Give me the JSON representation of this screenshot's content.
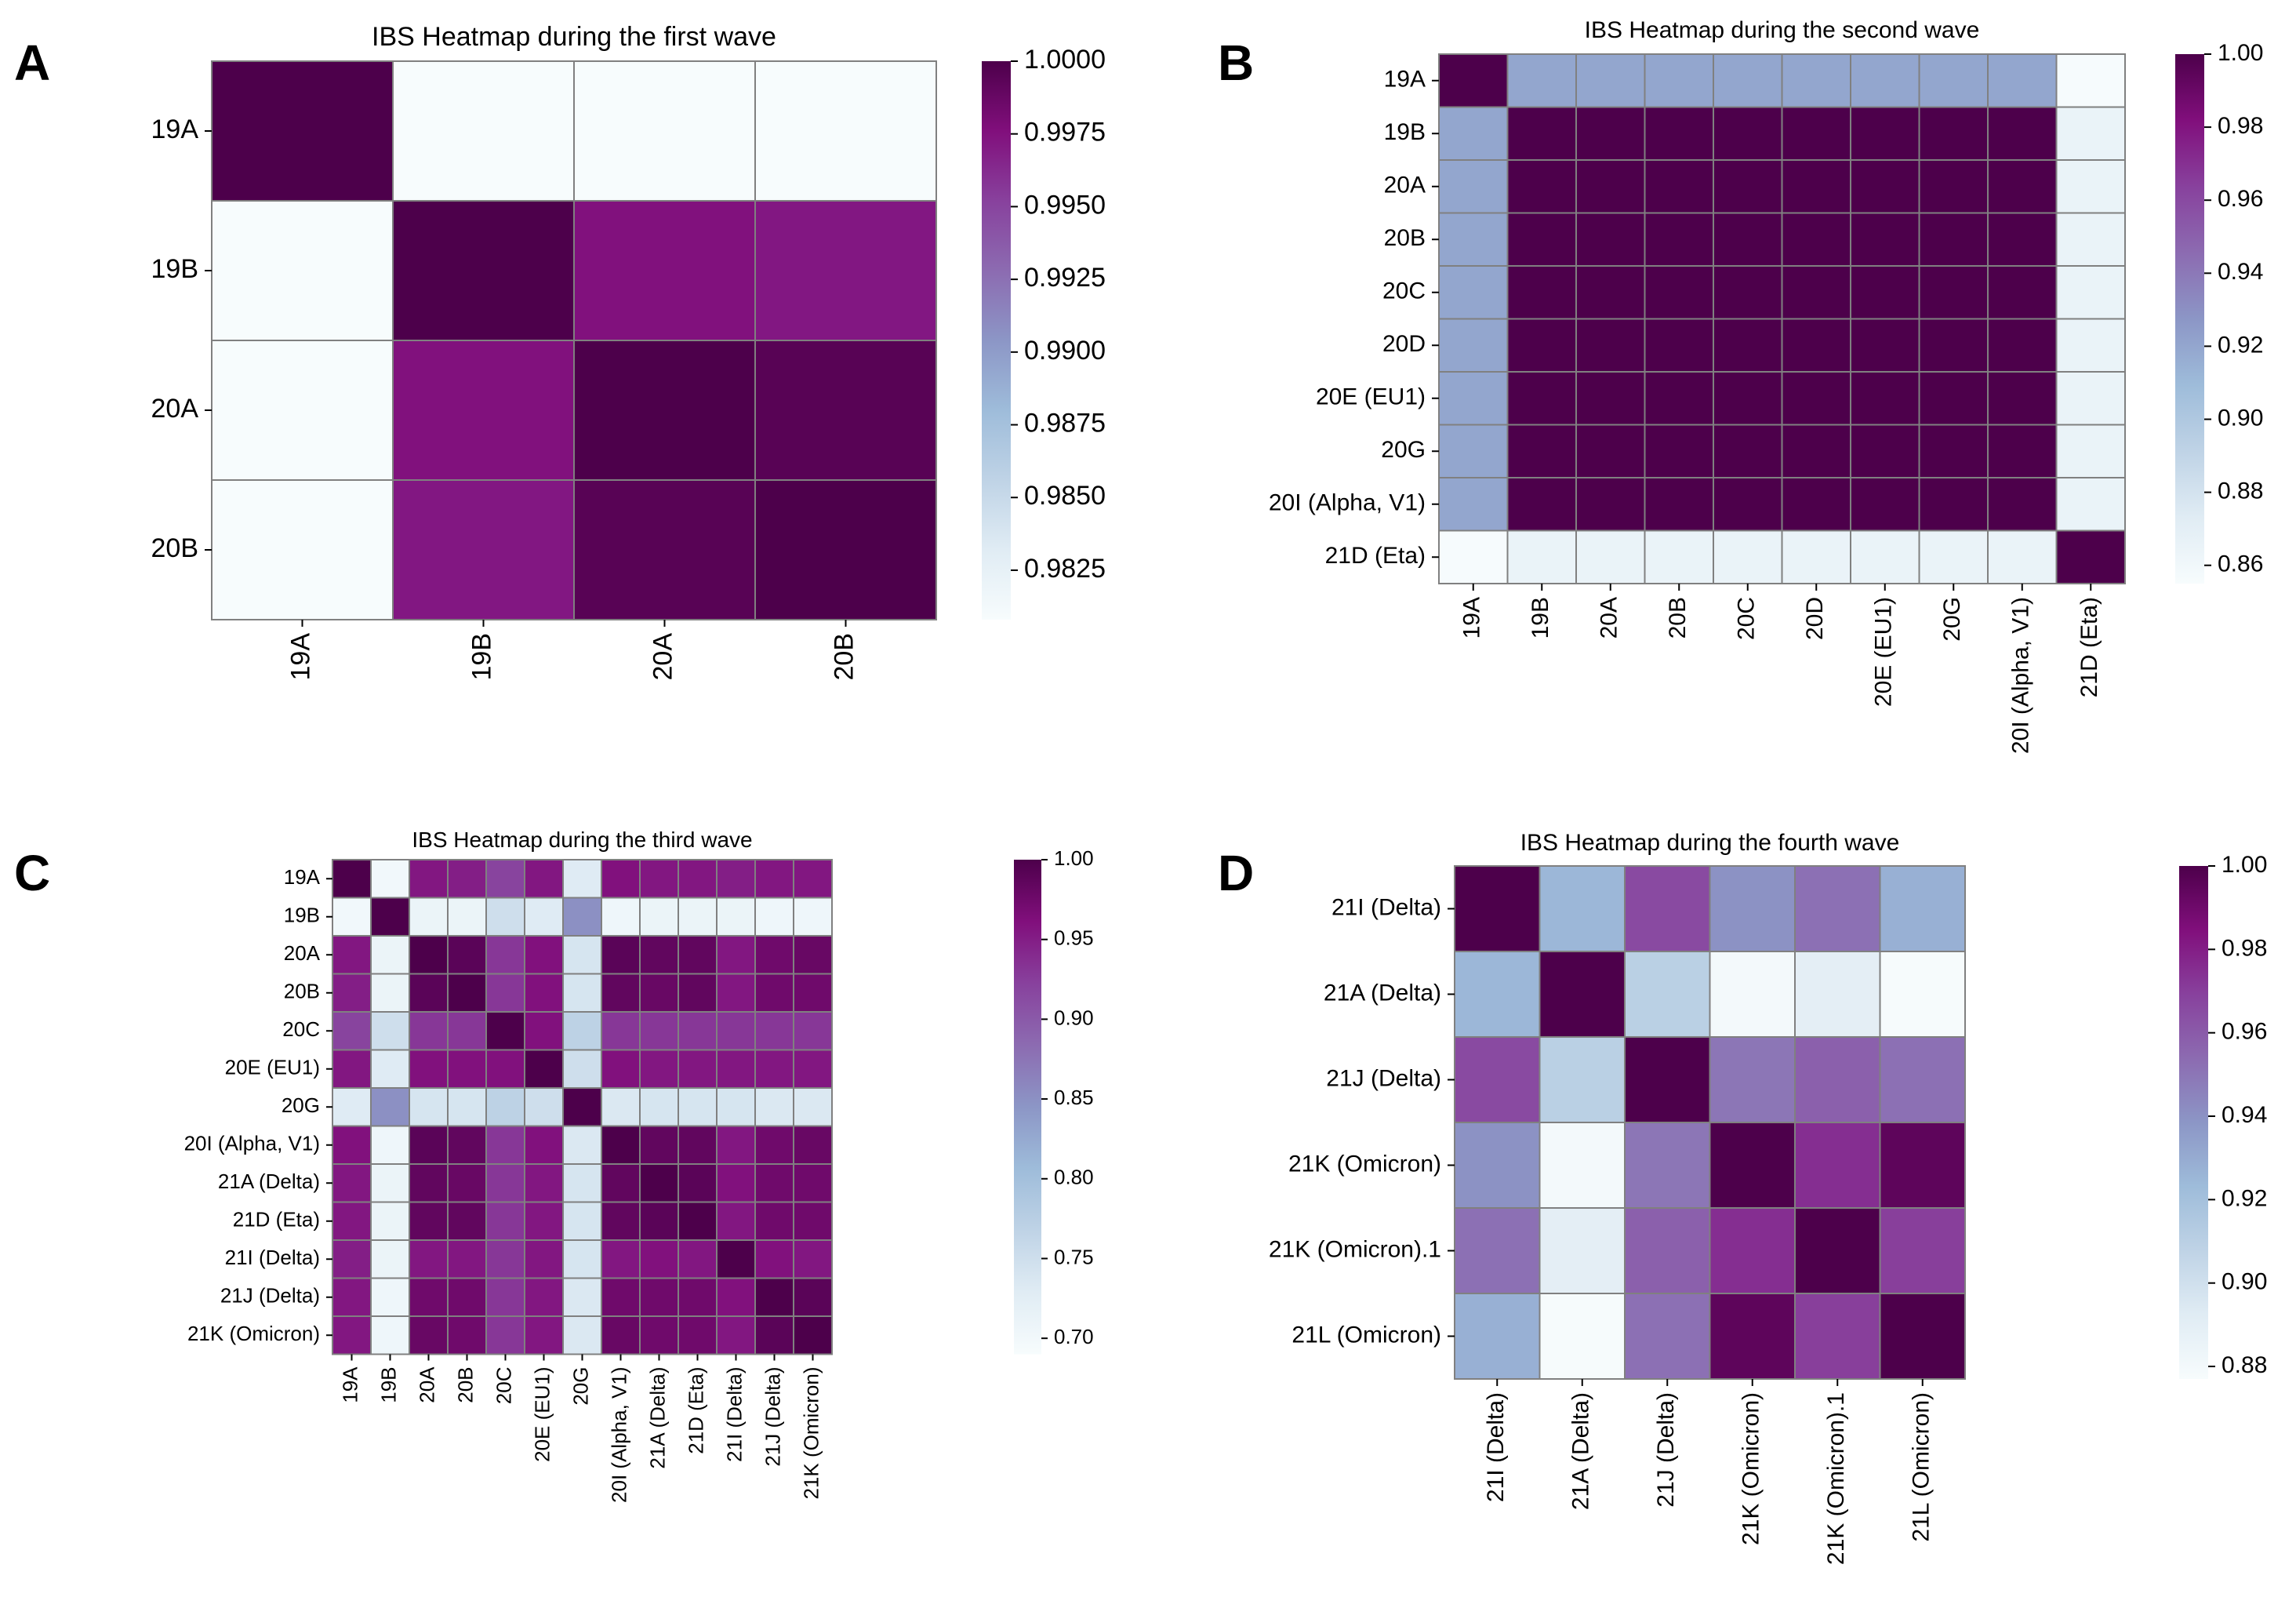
{
  "figure": {
    "panel_labels": [
      "A",
      "B",
      "C",
      "D"
    ]
  },
  "colors": {
    "colormap": [
      "#f7fcfd",
      "#e0ecf4",
      "#bfd3e6",
      "#9ebcda",
      "#8c96c6",
      "#8c6bb1",
      "#88419d",
      "#810f7c",
      "#4d004b"
    ],
    "grid_line": "#808080",
    "text": "#000000",
    "background": "#ffffff"
  },
  "chart_data": [
    {
      "type": "heatmap",
      "panel": "A",
      "title": "IBS Heatmap during the first wave",
      "x_labels": [
        "19A",
        "19B",
        "20A",
        "20B"
      ],
      "y_labels": [
        "19A",
        "19B",
        "20A",
        "20B"
      ],
      "values": [
        [
          1.0,
          0.9808,
          0.9808,
          0.9808
        ],
        [
          0.9808,
          1.0,
          0.9975,
          0.9972
        ],
        [
          0.9806,
          0.9975,
          1.0,
          0.9995
        ],
        [
          0.9806,
          0.9972,
          0.9995,
          1.0
        ]
      ],
      "vmin": 0.9808,
      "vmax": 1.0,
      "colorbar_ticks": [
        0.9825,
        0.985,
        0.9875,
        0.99,
        0.9925,
        0.995,
        0.9975,
        1.0
      ],
      "colorbar_tick_labels": [
        "0.9825",
        "0.9850",
        "0.9875",
        "0.9900",
        "0.9925",
        "0.9950",
        "0.9975",
        "1.0000"
      ]
    },
    {
      "type": "heatmap",
      "panel": "B",
      "title": "IBS Heatmap during the second wave",
      "x_labels": [
        "19A",
        "19B",
        "20A",
        "20B",
        "20C",
        "20D",
        "20E (EU1)",
        "20G",
        "20I (Alpha, V1)",
        "21D (Eta)"
      ],
      "y_labels": [
        "19A",
        "19B",
        "20A",
        "20B",
        "20C",
        "20D",
        "20E (EU1)",
        "20G",
        "20I (Alpha, V1)",
        "21D (Eta)"
      ],
      "values": [
        [
          1.0,
          0.92,
          0.92,
          0.92,
          0.92,
          0.92,
          0.92,
          0.92,
          0.92,
          0.856
        ],
        [
          0.92,
          1.0,
          1.0,
          1.0,
          1.0,
          1.0,
          1.0,
          1.0,
          1.0,
          0.865
        ],
        [
          0.92,
          1.0,
          1.0,
          1.0,
          1.0,
          1.0,
          1.0,
          1.0,
          1.0,
          0.865
        ],
        [
          0.92,
          1.0,
          1.0,
          1.0,
          1.0,
          1.0,
          1.0,
          1.0,
          1.0,
          0.865
        ],
        [
          0.92,
          1.0,
          1.0,
          1.0,
          1.0,
          1.0,
          1.0,
          1.0,
          1.0,
          0.865
        ],
        [
          0.92,
          1.0,
          1.0,
          1.0,
          1.0,
          1.0,
          1.0,
          1.0,
          1.0,
          0.865
        ],
        [
          0.92,
          1.0,
          1.0,
          1.0,
          1.0,
          1.0,
          1.0,
          1.0,
          1.0,
          0.865
        ],
        [
          0.92,
          1.0,
          1.0,
          1.0,
          1.0,
          1.0,
          1.0,
          1.0,
          1.0,
          0.865
        ],
        [
          0.92,
          1.0,
          1.0,
          1.0,
          1.0,
          1.0,
          1.0,
          1.0,
          1.0,
          0.865
        ],
        [
          0.856,
          0.865,
          0.865,
          0.865,
          0.865,
          0.865,
          0.865,
          0.865,
          0.865,
          1.0
        ]
      ],
      "vmin": 0.855,
      "vmax": 1.0,
      "colorbar_ticks": [
        0.86,
        0.88,
        0.9,
        0.92,
        0.94,
        0.96,
        0.98,
        1.0
      ],
      "colorbar_tick_labels": [
        "0.86",
        "0.88",
        "0.90",
        "0.92",
        "0.94",
        "0.96",
        "0.98",
        "1.00"
      ]
    },
    {
      "type": "heatmap",
      "panel": "C",
      "title": "IBS Heatmap during the third wave",
      "x_labels": [
        "19A",
        "19B",
        "20A",
        "20B",
        "20C",
        "20E (EU1)",
        "20G",
        "20I (Alpha, V1)",
        "21A (Delta)",
        "21D (Eta)",
        "21I (Delta)",
        "21J (Delta)",
        "21K (Omicron)"
      ],
      "y_labels": [
        "19A",
        "19B",
        "20A",
        "20B",
        "20C",
        "20E (EU1)",
        "20G",
        "20I (Alpha, V1)",
        "21A (Delta)",
        "21D (Eta)",
        "21I (Delta)",
        "21J (Delta)",
        "21K (Omicron)"
      ],
      "values": [
        [
          1.0,
          0.7,
          0.955,
          0.95,
          0.92,
          0.955,
          0.73,
          0.96,
          0.955,
          0.955,
          0.95,
          0.955,
          0.955
        ],
        [
          0.7,
          1.0,
          0.71,
          0.71,
          0.75,
          0.73,
          0.85,
          0.705,
          0.71,
          0.71,
          0.71,
          0.705,
          0.705
        ],
        [
          0.955,
          0.71,
          1.0,
          0.99,
          0.93,
          0.96,
          0.74,
          0.99,
          0.985,
          0.985,
          0.955,
          0.975,
          0.98
        ],
        [
          0.95,
          0.71,
          0.99,
          1.0,
          0.93,
          0.96,
          0.74,
          0.985,
          0.98,
          0.985,
          0.955,
          0.975,
          0.975
        ],
        [
          0.92,
          0.75,
          0.93,
          0.93,
          1.0,
          0.96,
          0.77,
          0.93,
          0.93,
          0.93,
          0.93,
          0.93,
          0.93
        ],
        [
          0.955,
          0.73,
          0.96,
          0.96,
          0.96,
          1.0,
          0.75,
          0.96,
          0.955,
          0.955,
          0.955,
          0.955,
          0.955
        ],
        [
          0.73,
          0.85,
          0.74,
          0.74,
          0.77,
          0.75,
          1.0,
          0.735,
          0.74,
          0.74,
          0.74,
          0.735,
          0.735
        ],
        [
          0.96,
          0.705,
          0.99,
          0.985,
          0.93,
          0.96,
          0.735,
          1.0,
          0.985,
          0.985,
          0.955,
          0.975,
          0.98
        ],
        [
          0.955,
          0.71,
          0.985,
          0.98,
          0.93,
          0.955,
          0.74,
          0.985,
          1.0,
          0.99,
          0.96,
          0.975,
          0.975
        ],
        [
          0.955,
          0.71,
          0.985,
          0.985,
          0.93,
          0.955,
          0.74,
          0.985,
          0.99,
          1.0,
          0.955,
          0.975,
          0.975
        ],
        [
          0.95,
          0.71,
          0.955,
          0.955,
          0.93,
          0.955,
          0.74,
          0.955,
          0.96,
          0.955,
          1.0,
          0.96,
          0.955
        ],
        [
          0.955,
          0.705,
          0.975,
          0.975,
          0.93,
          0.955,
          0.735,
          0.975,
          0.975,
          0.975,
          0.96,
          1.0,
          0.99
        ],
        [
          0.955,
          0.705,
          0.98,
          0.975,
          0.93,
          0.955,
          0.735,
          0.98,
          0.975,
          0.975,
          0.955,
          0.99,
          1.0
        ]
      ],
      "vmin": 0.69,
      "vmax": 1.0,
      "colorbar_ticks": [
        0.7,
        0.75,
        0.8,
        0.85,
        0.9,
        0.95,
        1.0
      ],
      "colorbar_tick_labels": [
        "0.70",
        "0.75",
        "0.80",
        "0.85",
        "0.90",
        "0.95",
        "1.00"
      ]
    },
    {
      "type": "heatmap",
      "panel": "D",
      "title": "IBS Heatmap during the fourth wave",
      "x_labels": [
        "21I (Delta)",
        "21A (Delta)",
        "21J (Delta)",
        "21K (Omicron)",
        "21K (Omicron).1",
        "21L (Omicron)"
      ],
      "y_labels": [
        "21I (Delta)",
        "21A (Delta)",
        "21J (Delta)",
        "21K (Omicron)",
        "21K (Omicron).1",
        "21L (Omicron)"
      ],
      "values": [
        [
          1.0,
          0.925,
          0.966,
          0.94,
          0.952,
          0.928
        ],
        [
          0.925,
          1.0,
          0.91,
          0.88,
          0.89,
          0.878
        ],
        [
          0.966,
          0.91,
          1.0,
          0.95,
          0.958,
          0.952
        ],
        [
          0.94,
          0.88,
          0.95,
          1.0,
          0.975,
          0.995
        ],
        [
          0.952,
          0.89,
          0.958,
          0.975,
          1.0,
          0.97
        ],
        [
          0.928,
          0.878,
          0.952,
          0.995,
          0.97,
          1.0
        ]
      ],
      "vmin": 0.877,
      "vmax": 1.0,
      "colorbar_ticks": [
        0.88,
        0.9,
        0.92,
        0.94,
        0.96,
        0.98,
        1.0
      ],
      "colorbar_tick_labels": [
        "0.88",
        "0.90",
        "0.92",
        "0.94",
        "0.96",
        "0.98",
        "1.00"
      ]
    }
  ]
}
